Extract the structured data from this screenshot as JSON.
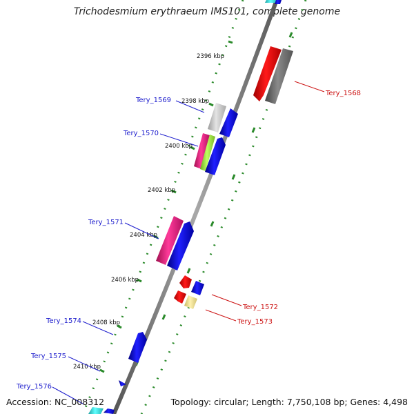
{
  "title": "Trichodesmium erythraeum IMS101, complete genome",
  "footer": {
    "accession": "Accession: NC_008312",
    "summary": "Topology: circular; Length: 7,750,108 bp; Genes: 4,498"
  },
  "ticks": [
    "2396 kbp",
    "2398 kbp",
    "2400 kbp",
    "2402 kbp",
    "2404 kbp",
    "2406 kbp",
    "2408 kbp",
    "2410 kbp"
  ],
  "genes": {
    "Tery_1568": "Tery_1568",
    "Tery_1569": "Tery_1569",
    "Tery_1570": "Tery_1570",
    "Tery_1571": "Tery_1571",
    "Tery_1572": "Tery_1572",
    "Tery_1573": "Tery_1573",
    "Tery_1574": "Tery_1574",
    "Tery_1575": "Tery_1575",
    "Tery_1576": "Tery_1576"
  },
  "colors": {
    "backbone": "#7a7a7a",
    "dotted_ring": "#2a8a2a",
    "forward_strand": "#1010e0",
    "reverse_strand": "#e01010",
    "magenta": "#e0207a",
    "grey_gene": "#777777",
    "light_grey_gene": "#cccccc",
    "lime_gene": "#a8f040",
    "pale_yellow_gene": "#efe29a",
    "cyan_gene": "#33e0e0",
    "label_blue": "#1a1acc",
    "label_red": "#cc1111"
  }
}
